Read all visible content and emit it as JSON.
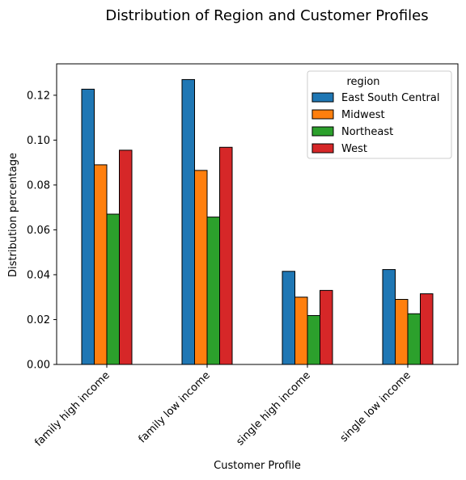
{
  "chart_data": {
    "type": "bar",
    "title": "Distribution of Region and Customer Profiles",
    "xlabel": "Customer Profile",
    "ylabel": "Distribution percentage",
    "categories": [
      "family high income",
      "family low income",
      "single high income",
      "single low income"
    ],
    "series": [
      {
        "name": "East South Central",
        "color": "#1f77b4",
        "values": [
          0.1227,
          0.127,
          0.0415,
          0.0423
        ]
      },
      {
        "name": "Midwest",
        "color": "#ff7f0e",
        "values": [
          0.089,
          0.0865,
          0.03,
          0.029
        ]
      },
      {
        "name": "Northeast",
        "color": "#2ca02c",
        "values": [
          0.067,
          0.0657,
          0.0218,
          0.0226
        ]
      },
      {
        "name": "West",
        "color": "#d62728",
        "values": [
          0.0955,
          0.0968,
          0.033,
          0.0315
        ]
      }
    ],
    "ylim": [
      0,
      0.134
    ],
    "yticks": [
      "0.00",
      "0.02",
      "0.04",
      "0.06",
      "0.08",
      "0.10",
      "0.12"
    ],
    "legend": {
      "title": "region",
      "position": "top-right"
    },
    "grid": false
  }
}
